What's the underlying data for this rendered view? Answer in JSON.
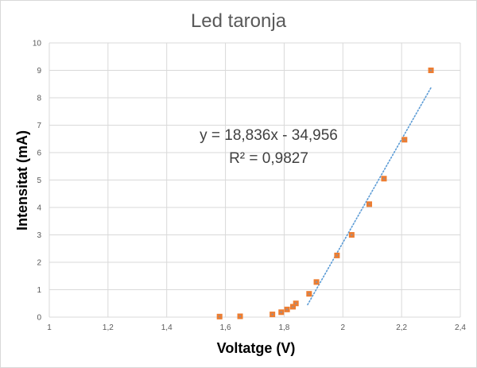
{
  "chart_data": {
    "type": "scatter",
    "title": "Led taronja",
    "xlabel": "Voltatge (V)",
    "ylabel": "Intensitat (mA)",
    "xlim": [
      1,
      2.4
    ],
    "ylim": [
      0,
      10
    ],
    "x_ticks": [
      "1",
      "1,2",
      "1,4",
      "1,6",
      "1,8",
      "2",
      "2,2",
      "2,4"
    ],
    "y_ticks": [
      "0",
      "1",
      "2",
      "3",
      "4",
      "5",
      "6",
      "7",
      "8",
      "9",
      "10"
    ],
    "grid": true,
    "series": [
      {
        "name": "Led taronja",
        "color": "#ED7D31",
        "marker_accent": "#5B9BD5",
        "points": [
          {
            "x": 1.58,
            "y": 0.02
          },
          {
            "x": 1.65,
            "y": 0.03
          },
          {
            "x": 1.76,
            "y": 0.1
          },
          {
            "x": 1.79,
            "y": 0.18
          },
          {
            "x": 1.81,
            "y": 0.28
          },
          {
            "x": 1.83,
            "y": 0.38
          },
          {
            "x": 1.84,
            "y": 0.5
          },
          {
            "x": 1.885,
            "y": 0.85
          },
          {
            "x": 1.91,
            "y": 1.28
          },
          {
            "x": 1.98,
            "y": 2.25
          },
          {
            "x": 2.03,
            "y": 3.0
          },
          {
            "x": 2.09,
            "y": 4.12
          },
          {
            "x": 2.14,
            "y": 5.05
          },
          {
            "x": 2.21,
            "y": 6.47
          },
          {
            "x": 2.3,
            "y": 9.0
          }
        ]
      }
    ],
    "trendline": {
      "type": "linear",
      "slope": 18.836,
      "intercept": -34.956,
      "x_range": [
        1.88,
        2.3
      ],
      "color": "#5B9BD5",
      "equation_label": "y = 18,836x - 34,956",
      "r2_label": "R² = 0,9827"
    }
  }
}
